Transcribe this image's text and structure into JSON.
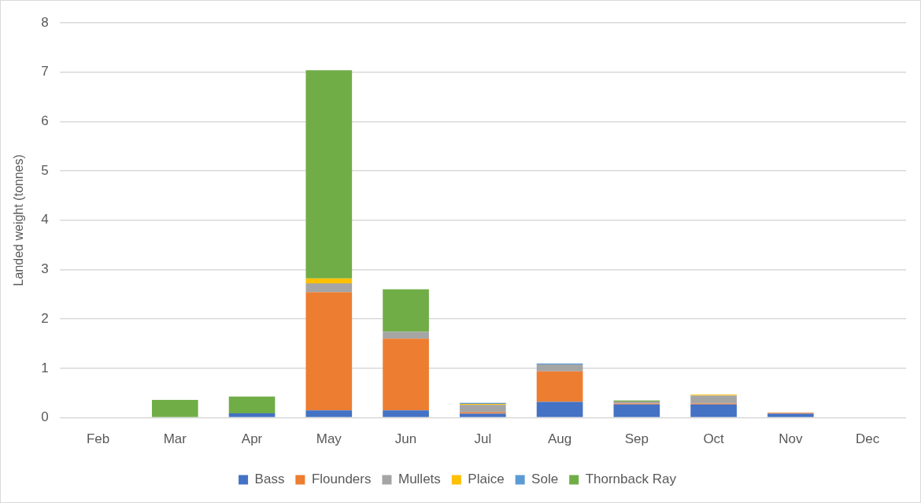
{
  "chart_data": {
    "type": "bar",
    "stacked": true,
    "ylabel": "Landed weight (tonnes)",
    "categories": [
      "Feb",
      "Mar",
      "Apr",
      "May",
      "Jun",
      "Jul",
      "Aug",
      "Sep",
      "Oct",
      "Nov",
      "Dec"
    ],
    "series": [
      {
        "name": "Bass",
        "color": "#4472c4",
        "values": [
          0,
          0,
          0.09,
          0.15,
          0.15,
          0.08,
          0.32,
          0.27,
          0.27,
          0.08,
          0
        ]
      },
      {
        "name": "Flounders",
        "color": "#ed7d31",
        "values": [
          0,
          0,
          0,
          2.39,
          1.45,
          0.03,
          0.62,
          0.02,
          0.02,
          0.02,
          0
        ]
      },
      {
        "name": "Mullets",
        "color": "#a5a5a5",
        "values": [
          0,
          0,
          0,
          0.18,
          0.14,
          0.15,
          0.14,
          0.04,
          0.16,
          0,
          0
        ]
      },
      {
        "name": "Plaice",
        "color": "#ffc000",
        "values": [
          0,
          0,
          0,
          0.1,
          0,
          0.02,
          0,
          0,
          0.02,
          0,
          0
        ]
      },
      {
        "name": "Sole",
        "color": "#5b9bd5",
        "values": [
          0,
          0,
          0,
          null,
          0,
          0.02,
          0.02,
          0,
          0,
          0,
          0
        ]
      },
      {
        "name": "Thornback Ray",
        "color": "#70ad47",
        "values": [
          0,
          0.36,
          0.34,
          4.22,
          0.86,
          0,
          0,
          0.02,
          0,
          0,
          0
        ]
      }
    ],
    "ylim": [
      0,
      8
    ],
    "yticks": [
      0,
      1,
      2,
      3,
      4,
      5,
      6,
      7,
      8
    ],
    "grid": "y",
    "legend": "bottom"
  }
}
